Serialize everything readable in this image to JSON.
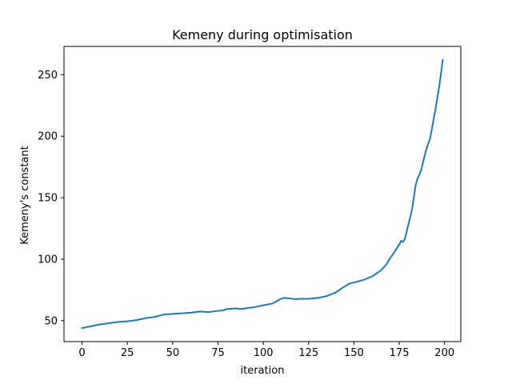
{
  "chart_data": {
    "type": "line",
    "title": "Kemeny during optimisation",
    "xlabel": "iteration",
    "ylabel": "Kemeny's constant",
    "xlim": [
      -9.95,
      208.95
    ],
    "ylim": [
      33.0,
      273.0
    ],
    "xticks": [
      0,
      25,
      50,
      75,
      100,
      125,
      150,
      175,
      200
    ],
    "yticks": [
      50,
      100,
      150,
      200,
      250
    ],
    "grid": false,
    "series": [
      {
        "color": "#1f77b4",
        "x": [
          0,
          5,
          10,
          15,
          20,
          25,
          30,
          35,
          40,
          45,
          50,
          55,
          60,
          65,
          70,
          75,
          78,
          80,
          85,
          88,
          90,
          95,
          100,
          105,
          110,
          112,
          115,
          118,
          120,
          125,
          130,
          135,
          140,
          145,
          148,
          150,
          155,
          160,
          165,
          168,
          170,
          172,
          175,
          176,
          177,
          178,
          180,
          182,
          184,
          185,
          187,
          190,
          192,
          195,
          197,
          199
        ],
        "values": [
          44.0,
          45.5,
          47.0,
          48.0,
          49.0,
          49.5,
          50.5,
          52.0,
          53.0,
          55.0,
          55.5,
          56.0,
          56.5,
          57.5,
          57.0,
          58.0,
          58.5,
          59.5,
          60.0,
          59.5,
          60.0,
          61.0,
          62.5,
          64.0,
          68.0,
          68.5,
          68.0,
          67.5,
          67.8,
          67.8,
          68.5,
          70.0,
          73.0,
          78.0,
          80.5,
          81.0,
          83.0,
          86.0,
          91.0,
          96.0,
          101.0,
          105.0,
          112.0,
          115.0,
          114.0,
          116.0,
          128.0,
          140.0,
          160.0,
          165.0,
          172.0,
          190.0,
          198.0,
          222.0,
          240.0,
          262.0
        ]
      }
    ]
  }
}
